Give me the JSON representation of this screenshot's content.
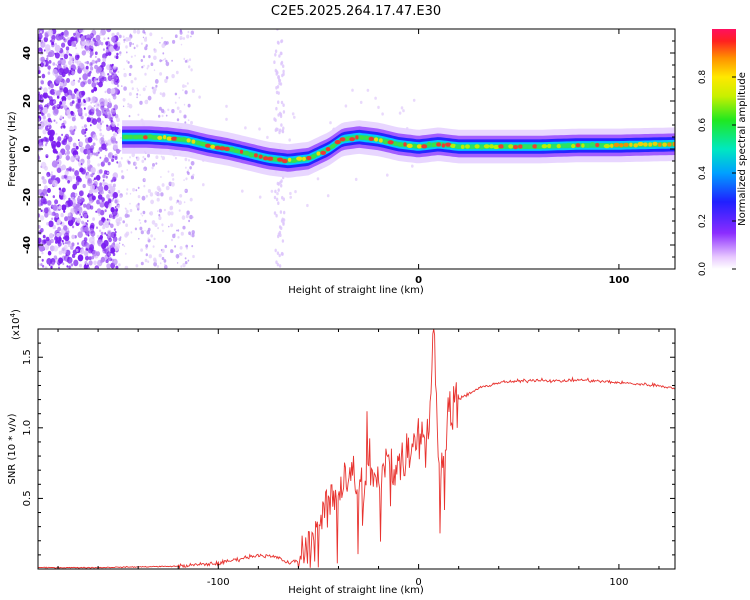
{
  "title": "C2E5.2025.264.17.47.E30",
  "chart_data": [
    {
      "type": "heatmap",
      "xlabel": "Height of straight line (km)",
      "ylabel": "Frequency (Hz)",
      "xlim": [
        -190,
        128
      ],
      "ylim": [
        -50,
        50
      ],
      "xticks": [
        -100,
        0,
        100
      ],
      "xtick_labels": [
        "-100",
        "0",
        "100"
      ],
      "yticks": [
        -40,
        -20,
        0,
        20,
        40
      ],
      "ytick_labels": [
        "-40",
        "-20",
        "0",
        "20",
        "40"
      ],
      "colorbar": {
        "label": "Normalized spectral amplitude",
        "range": [
          0,
          1
        ],
        "ticks": [
          0.0,
          0.2,
          0.4,
          0.6,
          0.8
        ],
        "tick_labels": [
          "0.0",
          "0.2",
          "0.4",
          "0.6",
          "0.8"
        ]
      },
      "ridge": {
        "x": [
          -145,
          -135,
          -125,
          -115,
          -105,
          -95,
          -85,
          -75,
          -65,
          -55,
          -45,
          -38,
          -30,
          -20,
          -10,
          0,
          10,
          20,
          40,
          60,
          80,
          100,
          128
        ],
        "y": [
          5,
          5,
          4.5,
          3.5,
          1.5,
          0,
          -2,
          -4,
          -5,
          -4,
          0,
          4,
          5,
          4,
          2,
          1,
          2,
          1,
          1,
          1,
          1.5,
          1.5,
          2
        ]
      }
    },
    {
      "type": "line",
      "xlabel": "Height of straight line (km)",
      "ylabel": "SNR (10 * v/v)",
      "y_multiplier": "(x10^4)",
      "y_multiplier_base": "(x10",
      "y_multiplier_exp": "4",
      "y_multiplier_close": ")",
      "xlim": [
        -190,
        128
      ],
      "ylim": [
        0,
        1.7
      ],
      "xticks": [
        -100,
        0,
        100
      ],
      "xtick_labels": [
        "-100",
        "0",
        "100"
      ],
      "yticks": [
        0.5,
        1.0,
        1.5
      ],
      "ytick_labels": [
        "0.5",
        "1.0",
        "1.5"
      ],
      "color": "#e8332f",
      "series": [
        {
          "name": "SNR",
          "x": [
            -190,
            -160,
            -140,
            -120,
            -100,
            -90,
            -80,
            -70,
            -65,
            -60,
            -55,
            -50,
            -45,
            -40,
            -35,
            -30,
            -25,
            -20,
            -15,
            -10,
            -5,
            0,
            5,
            8,
            10,
            15,
            20,
            30,
            40,
            50,
            60,
            70,
            80,
            90,
            100,
            110,
            120,
            128
          ],
          "y": [
            0.01,
            0.01,
            0.015,
            0.02,
            0.04,
            0.07,
            0.1,
            0.08,
            0.04,
            0.06,
            0.15,
            0.3,
            0.45,
            0.6,
            0.7,
            0.55,
            0.65,
            0.6,
            0.75,
            0.7,
            0.85,
            0.95,
            1.0,
            1.7,
            0.6,
            1.1,
            1.2,
            1.28,
            1.32,
            1.33,
            1.34,
            1.33,
            1.34,
            1.33,
            1.32,
            1.31,
            1.3,
            1.28
          ]
        }
      ]
    }
  ]
}
